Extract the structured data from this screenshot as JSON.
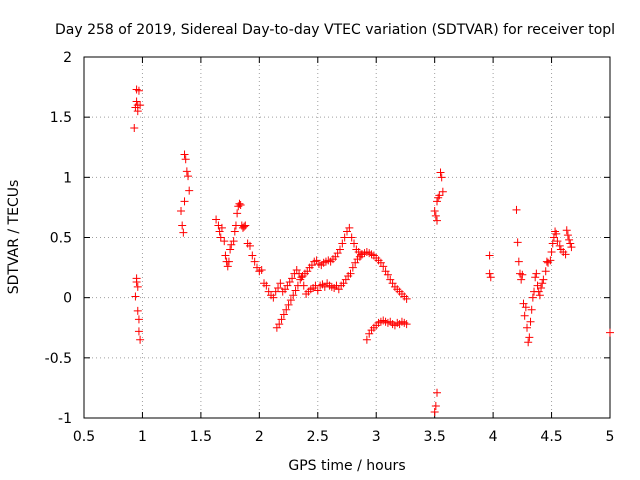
{
  "chart_data": {
    "type": "scatter",
    "title": "Day 258 of 2019, Sidereal Day-to-day VTEC variation (SDTVAR) for receiver topl",
    "xlabel": "GPS time / hours",
    "ylabel": "SDTVAR / TECUs",
    "xlim": [
      0.5,
      5
    ],
    "ylim": [
      -1,
      2
    ],
    "xticks": [
      0.5,
      1,
      1.5,
      2,
      2.5,
      3,
      3.5,
      4,
      4.5,
      5
    ],
    "xtick_labels": [
      "0.5",
      "1",
      "1.5",
      "2",
      "2.5",
      "3",
      "3.5",
      "4",
      "4.5",
      "5"
    ],
    "yticks": [
      -1,
      -0.5,
      0,
      0.5,
      1,
      1.5,
      2
    ],
    "ytick_labels": [
      "-1",
      "-0.5",
      "0",
      "0.5",
      "1",
      "1.5",
      "2"
    ],
    "grid": true,
    "marker": "+",
    "color": "#ff0000",
    "series": [
      {
        "name": "SDTVAR",
        "points": [
          [
            0.93,
            1.41
          ],
          [
            0.94,
            1.58
          ],
          [
            0.95,
            1.63
          ],
          [
            0.95,
            1.73
          ],
          [
            0.96,
            1.55
          ],
          [
            0.96,
            1.6
          ],
          [
            0.97,
            1.72
          ],
          [
            0.98,
            1.6
          ],
          [
            0.94,
            0.01
          ],
          [
            0.95,
            0.13
          ],
          [
            0.95,
            0.16
          ],
          [
            0.96,
            0.09
          ],
          [
            0.96,
            -0.11
          ],
          [
            0.97,
            -0.18
          ],
          [
            0.97,
            -0.28
          ],
          [
            0.98,
            -0.35
          ],
          [
            1.33,
            0.72
          ],
          [
            1.34,
            0.6
          ],
          [
            1.35,
            0.54
          ],
          [
            1.36,
            0.8
          ],
          [
            1.36,
            1.19
          ],
          [
            1.37,
            1.15
          ],
          [
            1.38,
            1.05
          ],
          [
            1.39,
            1.01
          ],
          [
            1.4,
            0.89
          ],
          [
            1.63,
            0.65
          ],
          [
            1.65,
            0.6
          ],
          [
            1.66,
            0.55
          ],
          [
            1.67,
            0.5
          ],
          [
            1.68,
            0.58
          ],
          [
            1.7,
            0.47
          ],
          [
            1.71,
            0.35
          ],
          [
            1.72,
            0.3
          ],
          [
            1.73,
            0.26
          ],
          [
            1.74,
            0.3
          ],
          [
            1.75,
            0.4
          ],
          [
            1.76,
            0.44
          ],
          [
            1.78,
            0.47
          ],
          [
            1.79,
            0.55
          ],
          [
            1.8,
            0.6
          ],
          [
            1.81,
            0.7
          ],
          [
            1.82,
            0.76
          ],
          [
            1.83,
            0.78
          ],
          [
            1.84,
            0.77
          ],
          [
            1.85,
            0.6
          ],
          [
            1.86,
            0.58
          ],
          [
            1.87,
            0.59
          ],
          [
            1.88,
            0.6
          ],
          [
            1.9,
            0.45
          ],
          [
            1.92,
            0.43
          ],
          [
            1.94,
            0.35
          ],
          [
            1.96,
            0.3
          ],
          [
            1.98,
            0.25
          ],
          [
            2.0,
            0.22
          ],
          [
            2.02,
            0.23
          ],
          [
            2.04,
            0.12
          ],
          [
            2.06,
            0.1
          ],
          [
            2.08,
            0.05
          ],
          [
            2.1,
            0.02
          ],
          [
            2.12,
            0.0
          ],
          [
            2.14,
            0.05
          ],
          [
            2.16,
            0.08
          ],
          [
            2.18,
            0.12
          ],
          [
            2.2,
            0.05
          ],
          [
            2.22,
            0.07
          ],
          [
            2.24,
            0.1
          ],
          [
            2.26,
            0.13
          ],
          [
            2.28,
            0.16
          ],
          [
            2.3,
            0.2
          ],
          [
            2.32,
            0.23
          ],
          [
            2.34,
            0.2
          ],
          [
            2.36,
            0.17
          ],
          [
            2.38,
            0.1
          ],
          [
            2.4,
            0.03
          ],
          [
            2.42,
            0.05
          ],
          [
            2.44,
            0.07
          ],
          [
            2.46,
            0.08
          ],
          [
            2.48,
            0.1
          ],
          [
            2.5,
            0.06
          ],
          [
            2.52,
            0.1
          ],
          [
            2.54,
            0.11
          ],
          [
            2.56,
            0.09
          ],
          [
            2.58,
            0.12
          ],
          [
            2.6,
            0.1
          ],
          [
            2.62,
            0.09
          ],
          [
            2.64,
            0.08
          ],
          [
            2.66,
            0.1
          ],
          [
            2.68,
            0.07
          ],
          [
            2.7,
            0.1
          ],
          [
            2.72,
            0.12
          ],
          [
            2.74,
            0.15
          ],
          [
            2.76,
            0.18
          ],
          [
            2.78,
            0.2
          ],
          [
            2.8,
            0.25
          ],
          [
            2.82,
            0.29
          ],
          [
            2.84,
            0.32
          ],
          [
            2.86,
            0.34
          ],
          [
            2.88,
            0.36
          ],
          [
            2.9,
            0.37
          ],
          [
            2.92,
            0.38
          ],
          [
            2.94,
            0.37
          ],
          [
            2.96,
            0.36
          ],
          [
            2.98,
            0.35
          ],
          [
            3.0,
            0.33
          ],
          [
            3.02,
            0.31
          ],
          [
            3.04,
            0.29
          ],
          [
            3.06,
            0.26
          ],
          [
            3.08,
            0.22
          ],
          [
            3.1,
            0.19
          ],
          [
            3.12,
            0.15
          ],
          [
            3.14,
            0.12
          ],
          [
            3.16,
            0.09
          ],
          [
            3.18,
            0.07
          ],
          [
            3.2,
            0.05
          ],
          [
            3.22,
            0.03
          ],
          [
            3.24,
            0.01
          ],
          [
            3.26,
            -0.01
          ],
          [
            2.15,
            -0.25
          ],
          [
            2.17,
            -0.22
          ],
          [
            2.19,
            -0.18
          ],
          [
            2.21,
            -0.14
          ],
          [
            2.23,
            -0.1
          ],
          [
            2.25,
            -0.06
          ],
          [
            2.27,
            -0.02
          ],
          [
            2.29,
            0.02
          ],
          [
            2.31,
            0.06
          ],
          [
            2.33,
            0.1
          ],
          [
            2.35,
            0.15
          ],
          [
            2.37,
            0.18
          ],
          [
            2.39,
            0.2
          ],
          [
            2.41,
            0.22
          ],
          [
            2.43,
            0.25
          ],
          [
            2.45,
            0.27
          ],
          [
            2.47,
            0.3
          ],
          [
            2.49,
            0.31
          ],
          [
            2.51,
            0.28
          ],
          [
            2.53,
            0.27
          ],
          [
            2.55,
            0.29
          ],
          [
            2.57,
            0.3
          ],
          [
            2.59,
            0.31
          ],
          [
            2.61,
            0.3
          ],
          [
            2.63,
            0.32
          ],
          [
            2.65,
            0.34
          ],
          [
            2.67,
            0.37
          ],
          [
            2.69,
            0.4
          ],
          [
            2.71,
            0.45
          ],
          [
            2.73,
            0.5
          ],
          [
            2.75,
            0.55
          ],
          [
            2.77,
            0.58
          ],
          [
            2.79,
            0.5
          ],
          [
            2.81,
            0.45
          ],
          [
            2.83,
            0.4
          ],
          [
            2.85,
            0.38
          ],
          [
            2.87,
            0.36
          ],
          [
            2.92,
            -0.35
          ],
          [
            2.94,
            -0.3
          ],
          [
            2.96,
            -0.27
          ],
          [
            2.98,
            -0.25
          ],
          [
            3.0,
            -0.23
          ],
          [
            3.02,
            -0.21
          ],
          [
            3.04,
            -0.2
          ],
          [
            3.06,
            -0.19
          ],
          [
            3.08,
            -0.2
          ],
          [
            3.1,
            -0.21
          ],
          [
            3.12,
            -0.2
          ],
          [
            3.14,
            -0.22
          ],
          [
            3.16,
            -0.23
          ],
          [
            3.18,
            -0.21
          ],
          [
            3.2,
            -0.22
          ],
          [
            3.22,
            -0.2
          ],
          [
            3.24,
            -0.21
          ],
          [
            3.26,
            -0.22
          ],
          [
            3.5,
            0.72
          ],
          [
            3.51,
            0.68
          ],
          [
            3.52,
            0.64
          ],
          [
            3.52,
            0.8
          ],
          [
            3.53,
            0.83
          ],
          [
            3.54,
            0.85
          ],
          [
            3.55,
            1.04
          ],
          [
            3.56,
            1.0
          ],
          [
            3.57,
            0.88
          ],
          [
            3.5,
            -0.95
          ],
          [
            3.51,
            -0.9
          ],
          [
            3.52,
            -0.79
          ],
          [
            3.97,
            0.35
          ],
          [
            3.97,
            0.2
          ],
          [
            3.98,
            0.17
          ],
          [
            4.2,
            0.73
          ],
          [
            4.21,
            0.46
          ],
          [
            4.22,
            0.3
          ],
          [
            4.23,
            0.2
          ],
          [
            4.24,
            0.15
          ],
          [
            4.25,
            0.19
          ],
          [
            4.26,
            -0.05
          ],
          [
            4.27,
            -0.15
          ],
          [
            4.28,
            -0.08
          ],
          [
            4.29,
            -0.25
          ],
          [
            4.3,
            -0.37
          ],
          [
            4.31,
            -0.33
          ],
          [
            4.32,
            -0.2
          ],
          [
            4.33,
            -0.1
          ],
          [
            4.34,
            0.0
          ],
          [
            4.35,
            0.05
          ],
          [
            4.36,
            0.17
          ],
          [
            4.37,
            0.2
          ],
          [
            4.38,
            0.1
          ],
          [
            4.39,
            0.05
          ],
          [
            4.4,
            0.02
          ],
          [
            4.41,
            0.08
          ],
          [
            4.42,
            0.12
          ],
          [
            4.43,
            0.15
          ],
          [
            4.45,
            0.22
          ],
          [
            4.46,
            0.3
          ],
          [
            4.47,
            0.29
          ],
          [
            4.49,
            0.31
          ],
          [
            4.5,
            0.38
          ],
          [
            4.51,
            0.45
          ],
          [
            4.52,
            0.5
          ],
          [
            4.53,
            0.55
          ],
          [
            4.54,
            0.53
          ],
          [
            4.55,
            0.47
          ],
          [
            4.57,
            0.43
          ],
          [
            4.58,
            0.4
          ],
          [
            4.6,
            0.38
          ],
          [
            4.62,
            0.36
          ],
          [
            4.63,
            0.56
          ],
          [
            4.64,
            0.52
          ],
          [
            4.65,
            0.48
          ],
          [
            4.66,
            0.45
          ],
          [
            4.67,
            0.42
          ],
          [
            5.0,
            -0.29
          ]
        ]
      }
    ]
  }
}
